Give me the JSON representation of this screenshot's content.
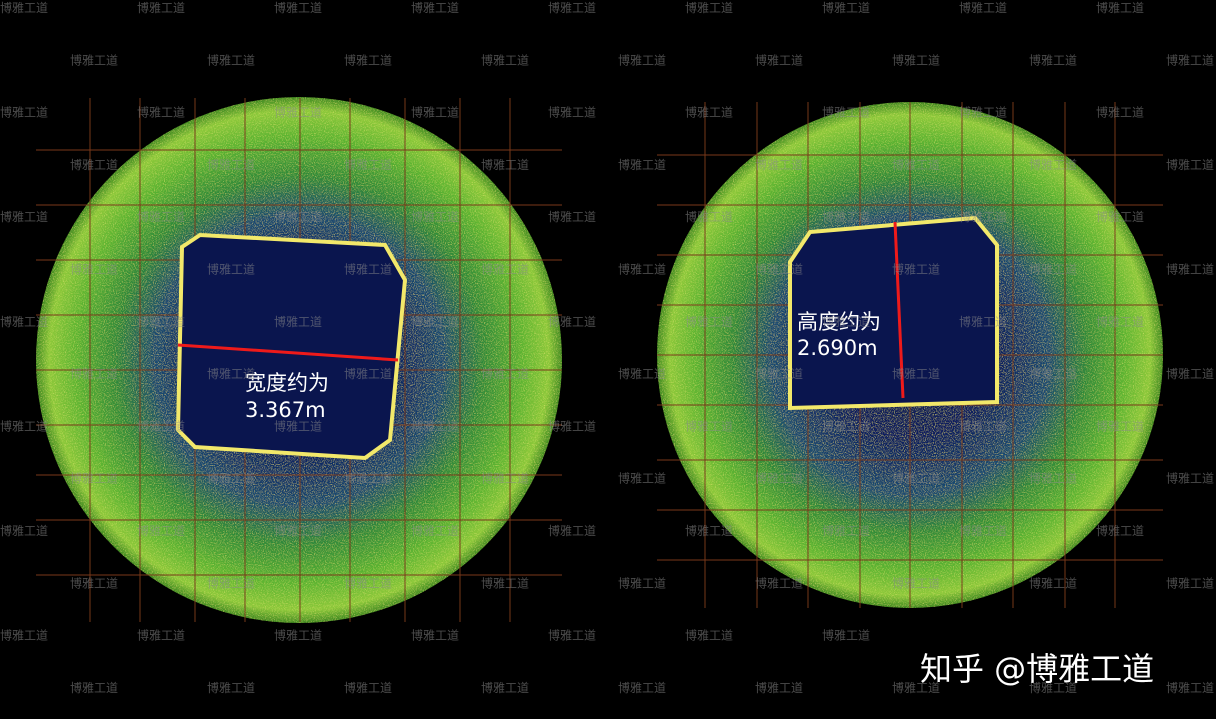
{
  "watermark": "博雅工道",
  "left_panel": {
    "label": "宽度约为",
    "measurement": "3.367m"
  },
  "right_panel": {
    "label": "高度约为",
    "measurement": "2.690m"
  },
  "footer": "知乎 @博雅工道"
}
